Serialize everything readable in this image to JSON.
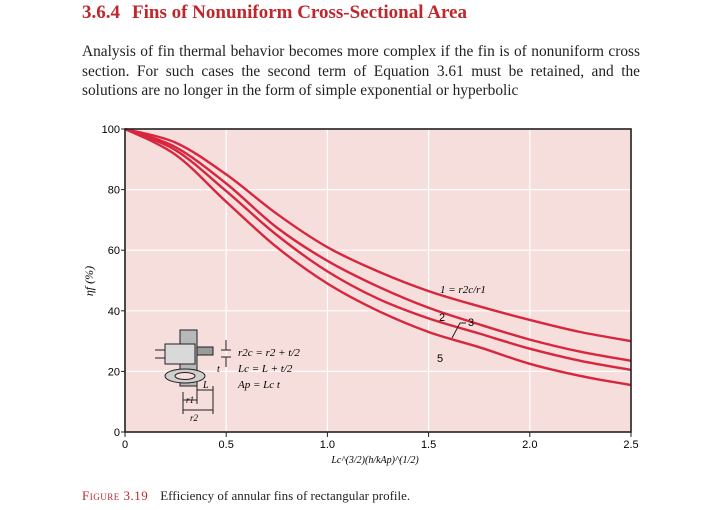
{
  "section": {
    "number": "3.6.4",
    "title": "Fins of Nonuniform Cross-Sectional Area"
  },
  "paragraph": "Analysis of fin thermal behavior becomes more complex if the fin is of nonuniform cross section. For such cases the second term of Equation 3.61 must be retained, and the solutions are no longer in the form of simple exponential or hyperbolic",
  "figure": {
    "label": "Figure 3.19",
    "caption": "Efficiency of annular fins of rectangular profile."
  },
  "colors": {
    "plot_background": "#f6dedd",
    "curve": "#d7263d",
    "heading": "#c0272d",
    "grid": "#ffffff"
  },
  "chart_data": {
    "type": "line",
    "title": "",
    "xlabel": "Lc^(3/2)(h/kAp)^(1/2)",
    "ylabel": "ηf (%)",
    "xlim": [
      0,
      2.5
    ],
    "ylim": [
      0,
      100
    ],
    "x_ticks": [
      "0",
      "0.5",
      "1.0",
      "1.5",
      "2.0",
      "2.5"
    ],
    "y_ticks": [
      "0",
      "20",
      "40",
      "60",
      "80",
      "100"
    ],
    "grid": true,
    "series": [
      {
        "name": "1",
        "x": [
          0,
          0.25,
          0.5,
          0.75,
          1.0,
          1.25,
          1.5,
          1.75,
          2.0,
          2.25,
          2.5
        ],
        "values": [
          100,
          95.5,
          85,
          72,
          61,
          53,
          46.5,
          41.5,
          37,
          33,
          30
        ]
      },
      {
        "name": "2",
        "x": [
          0,
          0.25,
          0.5,
          0.75,
          1.0,
          1.25,
          1.5,
          1.75,
          2.0,
          2.25,
          2.5
        ],
        "values": [
          100,
          94,
          82,
          67.5,
          56.5,
          48,
          41,
          35.5,
          30.5,
          26.5,
          23.5
        ]
      },
      {
        "name": "3",
        "x": [
          0,
          0.25,
          0.5,
          0.75,
          1.0,
          1.25,
          1.5,
          1.75,
          2.0,
          2.25,
          2.5
        ],
        "values": [
          100,
          93,
          79.5,
          65,
          53,
          44,
          37.5,
          32.5,
          27.5,
          23.5,
          20.5
        ]
      },
      {
        "name": "5",
        "x": [
          0,
          0.25,
          0.5,
          0.75,
          1.0,
          1.25,
          1.5,
          1.75,
          2.0,
          2.25,
          2.5
        ],
        "values": [
          100,
          91.5,
          76,
          61,
          49,
          40,
          33,
          28,
          22.5,
          18.5,
          15.5
        ]
      }
    ],
    "curve_labels": {
      "ratio": "1 = r2c/r1",
      "two": "2",
      "three": "3",
      "five": "5"
    },
    "inset": {
      "eq1": "r2c = r2 + t/2",
      "eq2": "Lc = L + t/2",
      "eq3": "Ap = Lc t",
      "dim_t": "t",
      "dim_L": "L",
      "dim_r1": "r1",
      "dim_r2": "r2"
    }
  }
}
